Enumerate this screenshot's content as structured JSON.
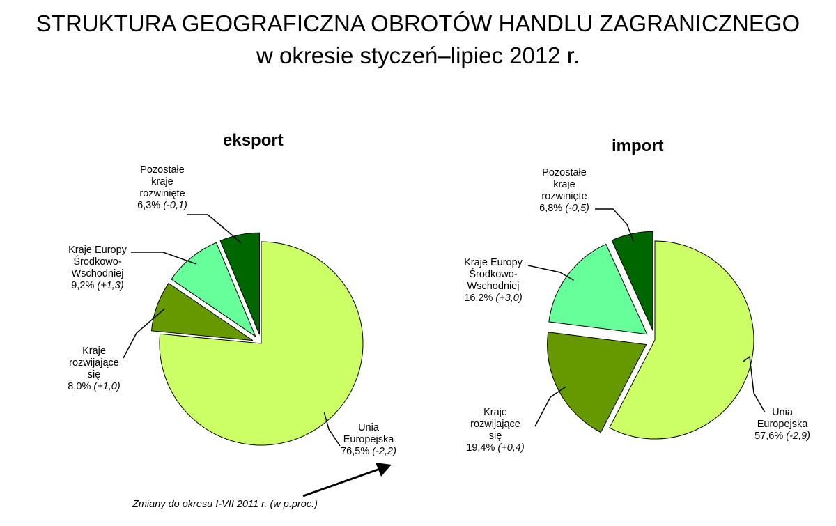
{
  "header": {
    "title_line1": "STRUKTURA GEOGRAFICZNA OBROTÓW HANDLU ZAGRANICZNEGO",
    "title_line2": "w okresie styczeń–lipiec 2012 r."
  },
  "chart_data": [
    {
      "type": "pie",
      "title": "eksport",
      "slices": [
        {
          "label_lines": [
            "Unia",
            "Europejska"
          ],
          "value": 76.5,
          "value_text": "76,5%",
          "change_text": "(-2,2)",
          "color": "#ccff66"
        },
        {
          "label_lines": [
            "Kraje",
            "rozwijające",
            "się"
          ],
          "value": 8.0,
          "value_text": "8,0%",
          "change_text": "(+1,0)",
          "color": "#669900"
        },
        {
          "label_lines": [
            "Kraje Europy",
            "Środkowo-",
            "Wschodniej"
          ],
          "value": 9.2,
          "value_text": "9,2%",
          "change_text": "(+1,3)",
          "color": "#66ff99"
        },
        {
          "label_lines": [
            "Pozostałe",
            "kraje",
            "rozwinięte"
          ],
          "value": 6.3,
          "value_text": "6,3%",
          "change_text": "(-0,1)",
          "color": "#006600"
        }
      ]
    },
    {
      "type": "pie",
      "title": "import",
      "slices": [
        {
          "label_lines": [
            "Unia",
            "Europejska"
          ],
          "value": 57.6,
          "value_text": "57,6%",
          "change_text": "(-2,9)",
          "color": "#ccff66"
        },
        {
          "label_lines": [
            "Kraje",
            "rozwijające",
            "się"
          ],
          "value": 19.4,
          "value_text": "19,4%",
          "change_text": "(+0,4)",
          "color": "#669900"
        },
        {
          "label_lines": [
            "Kraje Europy",
            "Środkowo-",
            "Wschodniej"
          ],
          "value": 16.2,
          "value_text": "16,2%",
          "change_text": "(+3,0)",
          "color": "#66ff99"
        },
        {
          "label_lines": [
            "Pozostałe",
            "kraje",
            "rozwinięte"
          ],
          "value": 6.8,
          "value_text": "6,8%",
          "change_text": "(-0,5)",
          "color": "#006600"
        }
      ]
    }
  ],
  "footnote": "Zmiany do okresu I-VII  2011 r. (w p.proc.)"
}
